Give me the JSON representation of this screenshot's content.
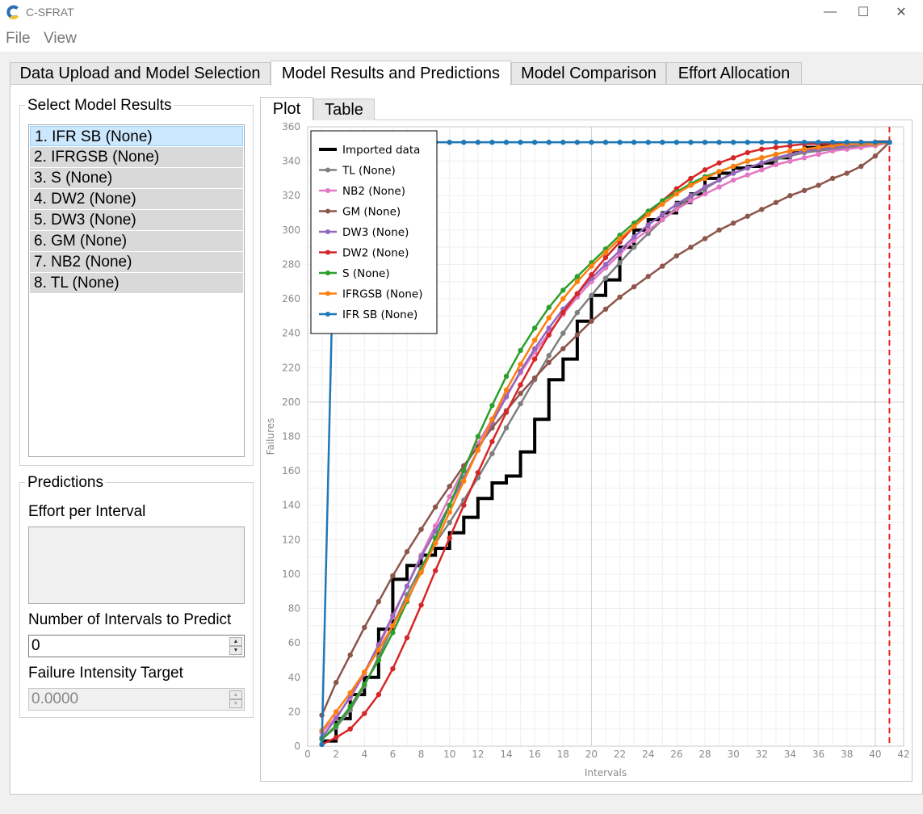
{
  "window": {
    "title": "C-SFRAT",
    "controls": [
      "—",
      "☐",
      "✕"
    ]
  },
  "menu": [
    "File",
    "View"
  ],
  "tabs": [
    {
      "label": "Data Upload and Model Selection",
      "active": false
    },
    {
      "label": "Model Results and Predictions",
      "active": true
    },
    {
      "label": "Model Comparison",
      "active": false
    },
    {
      "label": "Effort Allocation",
      "active": false
    }
  ],
  "results_group": {
    "title": "Select Model Results",
    "items": [
      "1. IFR SB (None)",
      "2. IFRGSB (None)",
      "3. S (None)",
      "4. DW2 (None)",
      "5. DW3 (None)",
      "6. GM (None)",
      "7. NB2 (None)",
      "8. TL (None)"
    ],
    "selected_index": 0
  },
  "predictions": {
    "title": "Predictions",
    "effort_label": "Effort per Interval",
    "intervals_label": "Number of Intervals to Predict",
    "intervals_value": "0",
    "target_label": "Failure Intensity Target",
    "target_value": "0.0000"
  },
  "subtabs": [
    {
      "label": "Plot",
      "active": true
    },
    {
      "label": "Table",
      "active": false
    }
  ],
  "chart_data": {
    "type": "line",
    "title": "",
    "xlabel": "Intervals",
    "ylabel": "Failures",
    "xlim": [
      0,
      42
    ],
    "ylim": [
      0,
      360
    ],
    "x_ticks": [
      0,
      2,
      4,
      6,
      8,
      10,
      12,
      14,
      16,
      18,
      20,
      22,
      24,
      26,
      28,
      30,
      32,
      34,
      36,
      38,
      40,
      42
    ],
    "y_ticks": [
      0,
      20,
      40,
      60,
      80,
      100,
      120,
      140,
      160,
      180,
      200,
      220,
      240,
      260,
      280,
      300,
      320,
      340,
      360
    ],
    "grid": true,
    "legend_position": "top-left",
    "vertical_marker": {
      "x": 41,
      "color": "#e8261c",
      "style": "dashed"
    },
    "x": [
      1,
      2,
      3,
      4,
      5,
      6,
      7,
      8,
      9,
      10,
      11,
      12,
      13,
      14,
      15,
      16,
      17,
      18,
      19,
      20,
      21,
      22,
      23,
      24,
      25,
      26,
      27,
      28,
      29,
      30,
      31,
      32,
      33,
      34,
      35,
      36,
      37,
      38,
      39,
      40,
      41
    ],
    "series": [
      {
        "name": "Imported data",
        "color": "#000000",
        "step": true,
        "markers": false,
        "values": [
          3,
          16,
          30,
          40,
          68,
          97,
          105,
          111,
          115,
          124,
          133,
          144,
          153,
          157,
          171,
          190,
          213,
          225,
          247,
          262,
          271,
          290,
          300,
          306,
          310,
          316,
          321,
          330,
          333,
          336,
          337,
          339,
          342,
          345,
          348,
          349,
          349,
          350,
          350,
          351,
          351
        ]
      },
      {
        "name": "TL (None)",
        "color": "#7f7f7f",
        "markers": true,
        "values": [
          4,
          11,
          21,
          35,
          52,
          70,
          88,
          104,
          118,
          130,
          143,
          156,
          170,
          185,
          199,
          213,
          227,
          240,
          252,
          262,
          272,
          281,
          290,
          298,
          306,
          313,
          319,
          324,
          329,
          333,
          336,
          339,
          341,
          343,
          345,
          346,
          347,
          348,
          349,
          350,
          351
        ]
      },
      {
        "name": "NB2 (None)",
        "color": "#e377c2",
        "markers": true,
        "values": [
          8,
          17,
          28,
          42,
          58,
          75,
          93,
          111,
          128,
          145,
          161,
          176,
          190,
          204,
          217,
          229,
          240,
          251,
          261,
          270,
          278,
          286,
          294,
          300,
          306,
          312,
          317,
          321,
          325,
          329,
          332,
          335,
          338,
          340,
          342,
          344,
          346,
          347,
          348,
          349,
          351
        ]
      },
      {
        "name": "GM (None)",
        "color": "#8c564b",
        "markers": true,
        "values": [
          18,
          37,
          53,
          69,
          84,
          99,
          113,
          126,
          139,
          151,
          163,
          174,
          185,
          195,
          205,
          214,
          223,
          231,
          239,
          247,
          254,
          261,
          267,
          273,
          279,
          285,
          290,
          295,
          300,
          304,
          308,
          312,
          316,
          320,
          323,
          326,
          330,
          333,
          337,
          343,
          351
        ]
      },
      {
        "name": "DW3 (None)",
        "color": "#9467bd",
        "markers": true,
        "values": [
          5,
          16,
          29,
          43,
          59,
          76,
          93,
          110,
          125,
          140,
          156,
          172,
          188,
          203,
          218,
          231,
          243,
          254,
          263,
          272,
          280,
          288,
          296,
          303,
          309,
          315,
          320,
          325,
          329,
          333,
          336,
          339,
          342,
          344,
          346,
          347,
          348,
          349,
          350,
          350,
          351
        ]
      },
      {
        "name": "DW2 (None)",
        "color": "#d62728",
        "markers": true,
        "values": [
          1,
          5,
          10,
          19,
          30,
          45,
          63,
          82,
          102,
          121,
          140,
          159,
          177,
          194,
          210,
          225,
          239,
          252,
          263,
          274,
          284,
          293,
          302,
          310,
          317,
          324,
          330,
          335,
          339,
          342,
          345,
          347,
          348,
          349,
          350,
          350,
          350,
          350,
          351,
          351,
          351
        ]
      },
      {
        "name": "S (None)",
        "color": "#2ca02c",
        "markers": true,
        "values": [
          4,
          12,
          23,
          36,
          50,
          66,
          84,
          102,
          121,
          140,
          160,
          180,
          198,
          215,
          230,
          243,
          255,
          265,
          273,
          281,
          289,
          297,
          304,
          311,
          317,
          322,
          327,
          331,
          334,
          337,
          340,
          342,
          344,
          346,
          347,
          348,
          349,
          350,
          350,
          350,
          351
        ]
      },
      {
        "name": "IFRGSB (None)",
        "color": "#ff7f0e",
        "markers": true,
        "values": [
          9,
          20,
          31,
          43,
          56,
          70,
          85,
          101,
          118,
          136,
          154,
          172,
          190,
          207,
          222,
          236,
          249,
          260,
          270,
          279,
          287,
          295,
          302,
          309,
          315,
          321,
          326,
          330,
          334,
          337,
          340,
          342,
          344,
          346,
          347,
          348,
          349,
          350,
          350,
          350,
          351
        ]
      },
      {
        "name": "IFR SB (None)",
        "color": "#1f77b4",
        "markers": true,
        "values": [
          1,
          351,
          351,
          351,
          351,
          351,
          351,
          351,
          351,
          351,
          351,
          351,
          351,
          351,
          351,
          351,
          351,
          351,
          351,
          351,
          351,
          351,
          351,
          351,
          351,
          351,
          351,
          351,
          351,
          351,
          351,
          351,
          351,
          351,
          351,
          351,
          351,
          351,
          351,
          351,
          351
        ]
      }
    ]
  }
}
